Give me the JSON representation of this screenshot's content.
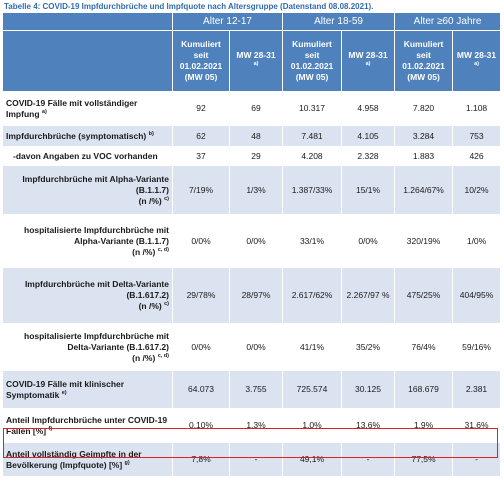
{
  "caption": "Tabelle 4: COVID-19 Impfdurchbrüche und Impfquote nach Altersgruppe (Datenstand 08.08.2021).",
  "groups": [
    "Alter 12-17",
    "Alter 18-59",
    "Alter ≥60 Jahre"
  ],
  "subheaders": {
    "kum": "Kumuliert seit 01.02.2021 (MW 05)",
    "mw": "MW 28-31",
    "mw_sup": "a)"
  },
  "rows": [
    {
      "label": "COVID-19 Fälle mit vollständiger Impfung",
      "sup": "a)",
      "values": [
        "92",
        "69",
        "10.317",
        "4.958",
        "7.820",
        "1.108"
      ]
    },
    {
      "label": "Impfdurchbrüche (symptomatisch)",
      "sup": "b)",
      "values": [
        "62",
        "48",
        "7.481",
        "4.105",
        "3.284",
        "753"
      ]
    },
    {
      "label": "-davon Angaben zu VOC vorhanden",
      "sup": "",
      "values": [
        "37",
        "29",
        "4.208",
        "2.328",
        "1.883",
        "426"
      ]
    },
    {
      "label": "Impfdurchbrüche mit Alpha-Variante (B.1.1.7)",
      "unit": "(n /%)",
      "sup": "c)",
      "values": [
        "7/19%",
        "1/3%",
        "1.387/33%",
        "15/1%",
        "1.264/67%",
        "10/2%"
      ]
    },
    {
      "label": "hospitalisierte Impfdurchbrüche mit Alpha-Variante (B.1.1.7)",
      "unit": "(n /%)",
      "sup": "c, d)",
      "values": [
        "0/0%",
        "0/0%",
        "33/1%",
        "0/0%",
        "320/19%",
        "1/0%"
      ]
    },
    {
      "label": "Impfdurchbrüche mit Delta-Variante (B.1.617.2)",
      "unit": "(n /%)",
      "sup": "c)",
      "values": [
        "29/78%",
        "28/97%",
        "2.617/62%",
        "2.267/97 %",
        "475/25%",
        "404/95%"
      ]
    },
    {
      "label": "hospitalisierte Impfdurchbrüche mit Delta-Variante (B.1.617.2)",
      "unit": "(n /%)",
      "sup": "c, d)",
      "values": [
        "0/0%",
        "0/0%",
        "41/1%",
        "35/2%",
        "76/4%",
        "59/16%"
      ]
    },
    {
      "label": "COVID-19 Fälle mit klinischer Symptomatik",
      "sup": "e)",
      "values": [
        "64.073",
        "3.755",
        "725.574",
        "30.125",
        "168.679",
        "2.381"
      ]
    },
    {
      "label": "Anteil Impfdurchbrüche unter COVID-19 Fällen [%]",
      "sup": "f)",
      "values": [
        "0,10%",
        "1,3%",
        "1,0%",
        "13,6%",
        "1,9%",
        "31,6%"
      ]
    },
    {
      "label": "Anteil vollständig Geimpfte in der Bevölkerung (Impfquote) [%]",
      "sup": "g)",
      "values": [
        "7,8%",
        "-",
        "49,1%",
        "-",
        "77,5%",
        "-"
      ]
    }
  ]
}
